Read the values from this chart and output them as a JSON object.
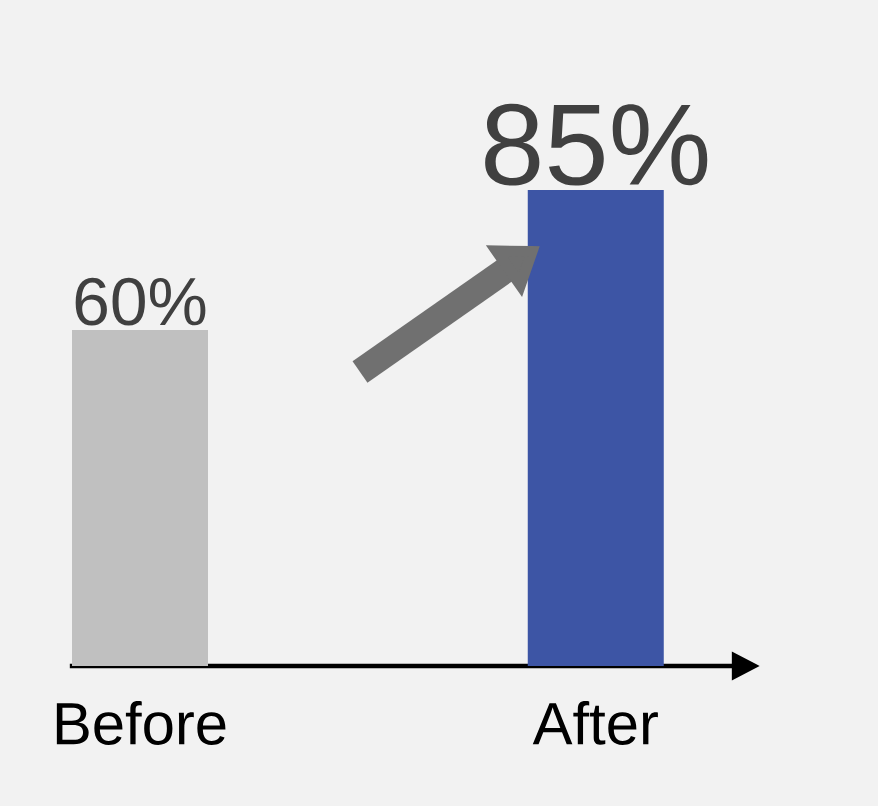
{
  "chart_data": {
    "type": "bar",
    "categories": [
      "Before",
      "After"
    ],
    "values": [
      60,
      85
    ],
    "colors": [
      "#c0c0c0",
      "#3d55a5"
    ],
    "value_labels": [
      "60%",
      "85%"
    ],
    "tick_labels": "x"
  }
}
